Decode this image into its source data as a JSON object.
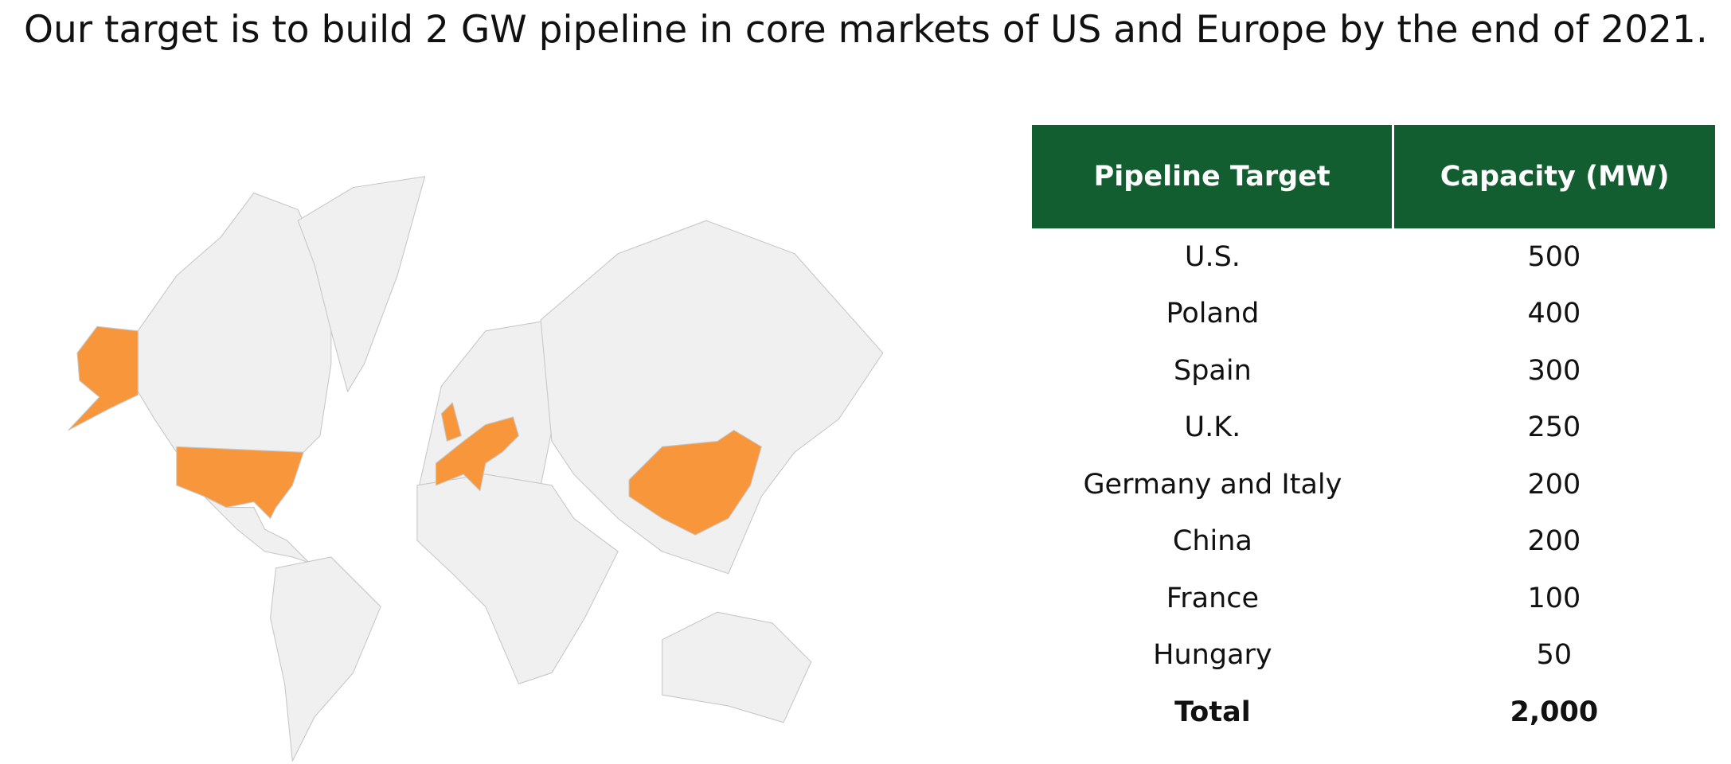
{
  "header": {
    "title": "Our target is to build 2 GW pipeline in core markets of US and Europe by the end of 2021."
  },
  "table": {
    "columns": [
      "Pipeline Target",
      "Capacity (MW)"
    ],
    "rows": [
      [
        "U.S.",
        "500"
      ],
      [
        "Poland",
        "400"
      ],
      [
        "Spain",
        "300"
      ],
      [
        "U.K.",
        "250"
      ],
      [
        "Germany and Italy",
        "200"
      ],
      [
        "China",
        "200"
      ],
      [
        "France",
        "100"
      ],
      [
        "Hungary",
        "50"
      ]
    ],
    "total": [
      "Total",
      "2,000"
    ]
  }
}
